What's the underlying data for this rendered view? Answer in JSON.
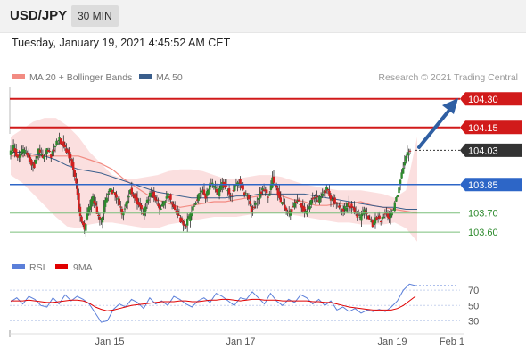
{
  "header": {
    "symbol": "USD/JPY",
    "timeframe": "30 MIN"
  },
  "timestamp": "Tuesday, January 19, 2021 4:45:52 AM CET",
  "legend": {
    "items": [
      {
        "label": "MA 20 + Bollinger Bands",
        "color": "#f28b82"
      },
      {
        "label": "MA 50",
        "color": "#3a5e8c"
      }
    ],
    "credit": "Research © 2021 Trading Central"
  },
  "rsi_legend": [
    {
      "label": "RSI",
      "color": "#5b7fd9"
    },
    {
      "label": "9MA",
      "color": "#e00000"
    }
  ],
  "colors": {
    "up": "#2e8b2e",
    "down": "#d12020",
    "resistance": "#d11a1a",
    "support": "#2d66c7",
    "support_light": "#7bbf7b",
    "current": "#333333",
    "arrow": "#2f5fa3",
    "band": "#f9c9c9"
  },
  "chart_data": {
    "type": "candlestick",
    "price_levels": [
      {
        "value": 104.3,
        "label": "104.30",
        "kind": "resistance"
      },
      {
        "value": 104.15,
        "label": "104.15",
        "kind": "resistance"
      },
      {
        "value": 104.03,
        "label": "104.03",
        "kind": "current"
      },
      {
        "value": 103.85,
        "label": "103.85",
        "kind": "pivot"
      },
      {
        "value": 103.7,
        "label": "103.70",
        "kind": "support"
      },
      {
        "value": 103.6,
        "label": "103.60",
        "kind": "support"
      }
    ],
    "ylim": [
      103.53,
      104.36
    ],
    "x_ticks": [
      "Jan 15",
      "Jan 17",
      "Jan 19",
      "Feb 1"
    ],
    "close_path": [
      104.0,
      104.05,
      103.98,
      104.03,
      104.02,
      103.97,
      103.95,
      104.03,
      103.98,
      104.04,
      104.0,
      104.06,
      104.09,
      104.05,
      104.02,
      103.96,
      103.85,
      103.68,
      103.62,
      103.72,
      103.78,
      103.7,
      103.66,
      103.76,
      103.83,
      103.8,
      103.77,
      103.7,
      103.75,
      103.82,
      103.79,
      103.74,
      103.7,
      103.76,
      103.81,
      103.78,
      103.72,
      103.75,
      103.8,
      103.76,
      103.7,
      103.66,
      103.63,
      103.67,
      103.73,
      103.78,
      103.82,
      103.79,
      103.86,
      103.84,
      103.8,
      103.86,
      103.83,
      103.79,
      103.84,
      103.87,
      103.82,
      103.78,
      103.72,
      103.75,
      103.8,
      103.83,
      103.78,
      103.88,
      103.82,
      103.76,
      103.72,
      103.69,
      103.74,
      103.77,
      103.73,
      103.7,
      103.75,
      103.79,
      103.76,
      103.8,
      103.83,
      103.78,
      103.76,
      103.74,
      103.71,
      103.75,
      103.73,
      103.69,
      103.67,
      103.71,
      103.68,
      103.64,
      103.68,
      103.66,
      103.7,
      103.68,
      103.72,
      103.8,
      103.92,
      104.0,
      104.03
    ],
    "ma20": [
      104.0,
      104.0,
      104.0,
      104.0,
      104.0,
      104.0,
      104.0,
      103.98,
      103.96,
      103.93,
      103.88,
      103.84,
      103.8,
      103.77,
      103.75,
      103.73,
      103.74,
      103.75,
      103.76,
      103.76,
      103.77,
      103.78,
      103.79,
      103.8,
      103.79,
      103.77,
      103.76,
      103.74,
      103.74,
      103.75,
      103.75,
      103.76,
      103.74,
      103.73,
      103.72,
      103.71,
      103.7
    ],
    "ma50": [
      104.02,
      104.02,
      104.01,
      104.0,
      103.98,
      103.95,
      103.93,
      103.92,
      103.91,
      103.89,
      103.87,
      103.85,
      103.83,
      103.81,
      103.8,
      103.79,
      103.78,
      103.78,
      103.78,
      103.78,
      103.79,
      103.79,
      103.8,
      103.8,
      103.8,
      103.8,
      103.8,
      103.79,
      103.78,
      103.77,
      103.76,
      103.75,
      103.74,
      103.73,
      103.73,
      103.72,
      103.72
    ],
    "bb_upper": [
      104.1,
      104.14,
      104.18,
      104.2,
      104.2,
      104.16,
      104.1,
      104.02,
      103.96,
      103.9,
      103.88,
      103.88,
      103.89,
      103.9,
      103.92,
      103.93,
      103.93,
      103.92,
      103.9,
      103.88,
      103.88,
      103.89,
      103.9,
      103.9,
      103.89,
      103.87,
      103.85,
      103.84,
      103.83,
      103.82,
      103.82,
      103.82,
      103.81,
      103.8,
      103.78,
      103.82,
      104.1
    ],
    "bb_lower": [
      103.9,
      103.86,
      103.8,
      103.74,
      103.68,
      103.63,
      103.62,
      103.64,
      103.65,
      103.65,
      103.64,
      103.63,
      103.62,
      103.62,
      103.64,
      103.65,
      103.66,
      103.67,
      103.68,
      103.68,
      103.68,
      103.69,
      103.7,
      103.7,
      103.7,
      103.69,
      103.68,
      103.67,
      103.66,
      103.65,
      103.65,
      103.64,
      103.64,
      103.64,
      103.65,
      103.62,
      103.55
    ],
    "rsi": {
      "ticks": [
        30,
        50,
        70
      ],
      "ylim": [
        20,
        90
      ],
      "rsi_values": [
        55,
        60,
        52,
        62,
        58,
        50,
        48,
        60,
        52,
        64,
        56,
        62,
        58,
        52,
        40,
        28,
        30,
        45,
        52,
        48,
        58,
        54,
        46,
        60,
        52,
        56,
        50,
        62,
        58,
        52,
        48,
        56,
        60,
        54,
        66,
        62,
        56,
        50,
        60,
        58,
        68,
        60,
        52,
        66,
        56,
        50,
        58,
        54,
        64,
        60,
        52,
        58,
        50,
        56,
        44,
        48,
        42,
        46,
        40,
        44,
        42,
        45,
        42,
        48,
        56,
        70,
        78,
        76
      ],
      "ma_values": [
        56,
        56,
        56,
        57,
        56,
        55,
        54,
        54,
        55,
        56,
        57,
        57,
        56,
        53,
        48,
        45,
        43,
        44,
        46,
        48,
        50,
        51,
        52,
        53,
        54,
        55,
        55,
        55,
        56,
        56,
        55,
        55,
        56,
        57,
        57,
        58,
        58,
        57,
        56,
        57,
        58,
        58,
        57,
        57,
        57,
        56,
        56,
        56,
        56,
        56,
        55,
        55,
        54,
        54,
        52,
        50,
        48,
        47,
        46,
        45,
        44,
        44,
        44,
        44,
        46,
        50,
        56,
        62
      ]
    }
  }
}
